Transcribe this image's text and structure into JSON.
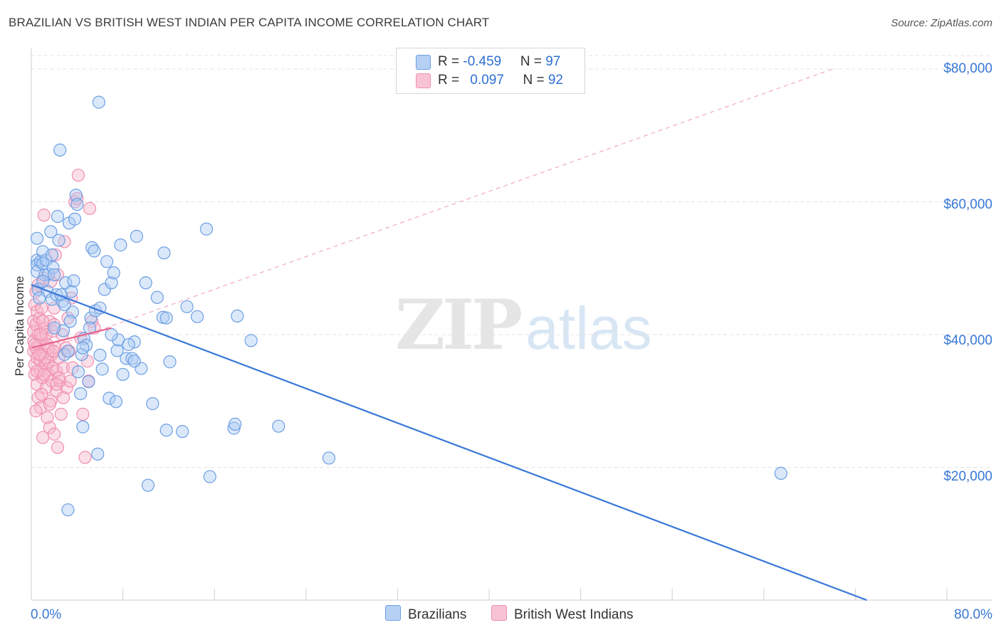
{
  "title": "BRAZILIAN VS BRITISH WEST INDIAN PER CAPITA INCOME CORRELATION CHART",
  "source": "Source: ZipAtlas.com",
  "watermark": {
    "zip": "ZIP",
    "atlas": "atlas"
  },
  "legend_top": {
    "rows": [
      {
        "r_label": "R = ",
        "r_value": "-0.459",
        "n_label": "N = ",
        "n_value": "97"
      },
      {
        "r_label": "R = ",
        "r_value": "0.097",
        "n_label": "N = ",
        "n_value": "92"
      }
    ]
  },
  "colors": {
    "blue": "#3a78d8",
    "blue_fill": "#aecbf3",
    "pink": "#e8638c",
    "pink_fill": "#f6b8cc",
    "grid": "#e3e3e3"
  },
  "chart_data": {
    "type": "scatter",
    "title": "BRAZILIAN VS BRITISH WEST INDIAN PER CAPITA INCOME CORRELATION CHART",
    "xlabel": "",
    "ylabel": "Per Capita Income",
    "xlim": [
      0,
      80
    ],
    "ylim": [
      0,
      82000
    ],
    "x_tick_labels": [
      "0.0%",
      "80.0%"
    ],
    "y_ticks": [
      20000,
      40000,
      60000,
      80000
    ],
    "y_tick_labels": [
      "$20,000",
      "$40,000",
      "$60,000",
      "$80,000"
    ],
    "grid": true,
    "legend_position": "bottom",
    "series": [
      {
        "name": "Brazilians",
        "color": "#3a78d8",
        "R": -0.459,
        "N": 97,
        "trend": {
          "x": [
            0,
            73
          ],
          "y": [
            47500,
            0
          ]
        },
        "points": [
          [
            0.5,
            54500
          ],
          [
            0.5,
            51200
          ],
          [
            0.5,
            50500
          ],
          [
            0.5,
            49500
          ],
          [
            0.6,
            46800
          ],
          [
            0.8,
            51000
          ],
          [
            1.0,
            52500
          ],
          [
            1.0,
            50700
          ],
          [
            1.2,
            49000
          ],
          [
            1.3,
            51200
          ],
          [
            1.4,
            46500
          ],
          [
            1.5,
            49100
          ],
          [
            1.7,
            55500
          ],
          [
            1.8,
            45300
          ],
          [
            1.9,
            50100
          ],
          [
            2.0,
            49000
          ],
          [
            2.2,
            46000
          ],
          [
            2.3,
            57800
          ],
          [
            2.4,
            54200
          ],
          [
            2.5,
            67800
          ],
          [
            2.7,
            45000
          ],
          [
            2.8,
            40600
          ],
          [
            2.9,
            37000
          ],
          [
            3.0,
            47800
          ],
          [
            3.2,
            37500
          ],
          [
            3.3,
            56800
          ],
          [
            3.5,
            46500
          ],
          [
            3.6,
            43400
          ],
          [
            3.7,
            48100
          ],
          [
            3.8,
            57400
          ],
          [
            3.9,
            61000
          ],
          [
            4.0,
            59600
          ],
          [
            4.1,
            34400
          ],
          [
            4.3,
            31100
          ],
          [
            4.4,
            37000
          ],
          [
            4.5,
            26100
          ],
          [
            4.6,
            39400
          ],
          [
            4.8,
            38400
          ],
          [
            5.0,
            32900
          ],
          [
            5.2,
            42500
          ],
          [
            5.3,
            53100
          ],
          [
            5.5,
            52600
          ],
          [
            5.6,
            43600
          ],
          [
            5.8,
            22000
          ],
          [
            5.9,
            75000
          ],
          [
            6.0,
            36900
          ],
          [
            6.2,
            34800
          ],
          [
            6.4,
            46800
          ],
          [
            6.6,
            51000
          ],
          [
            6.8,
            30400
          ],
          [
            7.0,
            47800
          ],
          [
            7.2,
            49300
          ],
          [
            7.4,
            29900
          ],
          [
            7.5,
            37600
          ],
          [
            7.6,
            39200
          ],
          [
            7.8,
            53500
          ],
          [
            8.3,
            36400
          ],
          [
            8.8,
            36400
          ],
          [
            9.0,
            38900
          ],
          [
            9.2,
            54800
          ],
          [
            9.6,
            34900
          ],
          [
            10.0,
            47800
          ],
          [
            10.2,
            17300
          ],
          [
            10.6,
            29600
          ],
          [
            11.0,
            45600
          ],
          [
            11.5,
            42600
          ],
          [
            11.6,
            52300
          ],
          [
            11.8,
            25600
          ],
          [
            12.1,
            35900
          ],
          [
            13.2,
            25400
          ],
          [
            13.6,
            44200
          ],
          [
            14.5,
            42700
          ],
          [
            15.3,
            55900
          ],
          [
            15.6,
            18600
          ],
          [
            17.7,
            25900
          ],
          [
            17.8,
            26500
          ],
          [
            18.0,
            42800
          ],
          [
            19.2,
            39100
          ],
          [
            21.6,
            26200
          ],
          [
            26.0,
            21400
          ],
          [
            65.5,
            19100
          ],
          [
            3.2,
            13600
          ],
          [
            8.0,
            34000
          ],
          [
            9.0,
            36000
          ],
          [
            4.5,
            38000
          ],
          [
            6.0,
            44000
          ],
          [
            2.0,
            41000
          ],
          [
            1.0,
            48000
          ],
          [
            7.0,
            40000
          ],
          [
            2.6,
            46000
          ],
          [
            0.7,
            45500
          ],
          [
            1.8,
            52000
          ],
          [
            3.4,
            42000
          ],
          [
            5.1,
            41000
          ],
          [
            8.5,
            38500
          ],
          [
            11.8,
            42500
          ],
          [
            2.9,
            44500
          ]
        ]
      },
      {
        "name": "British West Indians",
        "color": "#e8638c",
        "R": 0.097,
        "N": 92,
        "trend": {
          "x": [
            0,
            7
          ],
          "y": [
            38000,
            41000
          ]
        },
        "trend_extended": {
          "x": [
            0,
            70
          ],
          "y": [
            37000,
            80000
          ]
        },
        "points": [
          [
            0.2,
            42000
          ],
          [
            0.2,
            40500
          ],
          [
            0.2,
            39000
          ],
          [
            0.2,
            37500
          ],
          [
            0.3,
            44500
          ],
          [
            0.3,
            35500
          ],
          [
            0.3,
            34000
          ],
          [
            0.4,
            46500
          ],
          [
            0.4,
            41500
          ],
          [
            0.4,
            38000
          ],
          [
            0.5,
            43500
          ],
          [
            0.5,
            36500
          ],
          [
            0.5,
            32500
          ],
          [
            0.6,
            47500
          ],
          [
            0.6,
            40000
          ],
          [
            0.6,
            30500
          ],
          [
            0.7,
            42500
          ],
          [
            0.7,
            38500
          ],
          [
            0.8,
            36000
          ],
          [
            0.8,
            34500
          ],
          [
            0.8,
            29000
          ],
          [
            0.9,
            44000
          ],
          [
            0.9,
            39500
          ],
          [
            1.0,
            37000
          ],
          [
            1.0,
            33500
          ],
          [
            1.0,
            24500
          ],
          [
            1.1,
            58000
          ],
          [
            1.1,
            48500
          ],
          [
            1.2,
            41000
          ],
          [
            1.2,
            35500
          ],
          [
            1.3,
            40000
          ],
          [
            1.3,
            32000
          ],
          [
            1.4,
            27500
          ],
          [
            1.4,
            38500
          ],
          [
            1.5,
            36000
          ],
          [
            1.5,
            34000
          ],
          [
            1.6,
            42000
          ],
          [
            1.6,
            26000
          ],
          [
            1.7,
            48000
          ],
          [
            1.7,
            30000
          ],
          [
            1.8,
            37000
          ],
          [
            1.8,
            33000
          ],
          [
            1.9,
            40500
          ],
          [
            1.9,
            35000
          ],
          [
            2.0,
            44000
          ],
          [
            2.0,
            25000
          ],
          [
            2.1,
            52000
          ],
          [
            2.1,
            38000
          ],
          [
            2.2,
            34500
          ],
          [
            2.2,
            31500
          ],
          [
            2.3,
            49000
          ],
          [
            2.3,
            23000
          ],
          [
            2.4,
            36500
          ],
          [
            2.5,
            33000
          ],
          [
            2.6,
            28000
          ],
          [
            2.7,
            40000
          ],
          [
            2.8,
            35000
          ],
          [
            2.9,
            54000
          ],
          [
            3.0,
            38000
          ],
          [
            3.1,
            32000
          ],
          [
            3.2,
            42500
          ],
          [
            3.3,
            37500
          ],
          [
            3.5,
            45500
          ],
          [
            3.6,
            35000
          ],
          [
            3.8,
            60000
          ],
          [
            4.0,
            60500
          ],
          [
            4.1,
            64000
          ],
          [
            4.3,
            39500
          ],
          [
            4.5,
            28000
          ],
          [
            4.7,
            21500
          ],
          [
            4.9,
            36000
          ],
          [
            5.0,
            33000
          ],
          [
            5.1,
            59000
          ],
          [
            5.3,
            42000
          ],
          [
            5.5,
            41000
          ],
          [
            1.0,
            42000
          ],
          [
            0.8,
            40000
          ],
          [
            1.5,
            38000
          ],
          [
            2.0,
            41500
          ],
          [
            0.5,
            34500
          ],
          [
            1.2,
            36500
          ],
          [
            0.3,
            38500
          ],
          [
            0.7,
            37000
          ],
          [
            1.9,
            37500
          ],
          [
            2.4,
            33500
          ],
          [
            0.9,
            31000
          ],
          [
            1.6,
            29500
          ],
          [
            2.8,
            30500
          ],
          [
            3.4,
            33000
          ],
          [
            0.4,
            28500
          ],
          [
            1.1,
            34000
          ],
          [
            2.2,
            32500
          ]
        ]
      }
    ]
  },
  "legend_bottom": {
    "items": [
      "Brazilians",
      "British West Indians"
    ]
  }
}
